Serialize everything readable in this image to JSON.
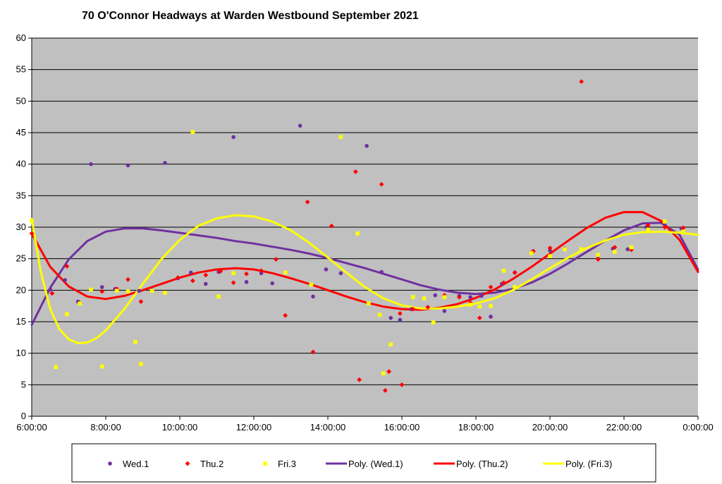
{
  "chart_data": {
    "type": "scatter",
    "title": "70 O'Connor Headways at Warden Westbound September 2021",
    "xlabel": "",
    "ylabel": "",
    "x_unit": "time of day (hours)",
    "xlim": [
      6,
      24
    ],
    "ylim": [
      0,
      60
    ],
    "y_ticks": [
      0,
      5,
      10,
      15,
      20,
      25,
      30,
      35,
      40,
      45,
      50,
      55,
      60
    ],
    "x_ticks": [
      6,
      8,
      10,
      12,
      14,
      16,
      18,
      20,
      22,
      24
    ],
    "x_tick_labels": [
      "6:00:00",
      "8:00:00",
      "10:00:00",
      "12:00:00",
      "14:00:00",
      "16:00:00",
      "18:00:00",
      "20:00:00",
      "22:00:00",
      "0:00:00"
    ],
    "grid": true,
    "plot_background": "#c0c0c0",
    "legend_position": "bottom",
    "series": [
      {
        "name": "Wed.1",
        "kind": "points",
        "marker": "circle",
        "color": "#7030a0",
        "points": [
          [
            6.5,
            20.1
          ],
          [
            6.9,
            21.6
          ],
          [
            7.25,
            18.2
          ],
          [
            7.6,
            40.0
          ],
          [
            7.9,
            20.5
          ],
          [
            8.25,
            20.2
          ],
          [
            8.6,
            39.8
          ],
          [
            8.9,
            19.9
          ],
          [
            9.25,
            20.0
          ],
          [
            9.6,
            40.2
          ],
          [
            9.95,
            21.9
          ],
          [
            10.3,
            22.8
          ],
          [
            10.7,
            21.0
          ],
          [
            11.05,
            22.9
          ],
          [
            11.45,
            44.3
          ],
          [
            11.8,
            21.3
          ],
          [
            12.2,
            22.7
          ],
          [
            12.5,
            21.1
          ],
          [
            13.25,
            46.1
          ],
          [
            13.6,
            19.0
          ],
          [
            13.95,
            23.3
          ],
          [
            14.35,
            22.7
          ],
          [
            15.05,
            42.9
          ],
          [
            15.45,
            22.9
          ],
          [
            15.7,
            15.6
          ],
          [
            15.95,
            15.3
          ],
          [
            16.25,
            17.0
          ],
          [
            16.9,
            19.2
          ],
          [
            17.15,
            16.7
          ],
          [
            17.55,
            19.1
          ],
          [
            17.85,
            18.9
          ],
          [
            18.15,
            19.1
          ],
          [
            18.4,
            15.8
          ],
          [
            18.7,
            21.0
          ],
          [
            19.05,
            22.8
          ],
          [
            19.5,
            26.0
          ],
          [
            20.0,
            26.3
          ],
          [
            20.4,
            26.6
          ],
          [
            21.3,
            25.4
          ],
          [
            21.7,
            26.6
          ],
          [
            22.1,
            26.5
          ],
          [
            22.6,
            30.0
          ],
          [
            23.1,
            30.4
          ],
          [
            23.55,
            29.8
          ]
        ]
      },
      {
        "name": "Thu.2",
        "kind": "points",
        "marker": "diamond",
        "color": "#ff0000",
        "points": [
          [
            6.0,
            29.0
          ],
          [
            6.55,
            19.5
          ],
          [
            6.95,
            23.8
          ],
          [
            7.3,
            18.0
          ],
          [
            7.9,
            19.8
          ],
          [
            8.3,
            20.2
          ],
          [
            8.6,
            21.7
          ],
          [
            8.95,
            18.2
          ],
          [
            9.95,
            22.0
          ],
          [
            10.35,
            21.5
          ],
          [
            10.7,
            22.4
          ],
          [
            11.1,
            23.0
          ],
          [
            11.45,
            21.2
          ],
          [
            11.8,
            22.6
          ],
          [
            12.2,
            23.1
          ],
          [
            12.6,
            24.9
          ],
          [
            12.85,
            16.0
          ],
          [
            13.45,
            34.0
          ],
          [
            13.6,
            10.2
          ],
          [
            14.1,
            30.2
          ],
          [
            14.75,
            38.8
          ],
          [
            14.85,
            5.8
          ],
          [
            15.45,
            36.8
          ],
          [
            15.55,
            4.1
          ],
          [
            15.65,
            7.1
          ],
          [
            15.95,
            16.3
          ],
          [
            16.0,
            5.0
          ],
          [
            16.3,
            17.0
          ],
          [
            16.7,
            17.3
          ],
          [
            17.15,
            19.2
          ],
          [
            17.55,
            18.9
          ],
          [
            17.85,
            18.0
          ],
          [
            18.1,
            15.6
          ],
          [
            18.4,
            20.5
          ],
          [
            18.75,
            21.2
          ],
          [
            19.05,
            22.8
          ],
          [
            19.55,
            26.2
          ],
          [
            20.0,
            26.7
          ],
          [
            20.85,
            53.1
          ],
          [
            21.3,
            24.9
          ],
          [
            21.75,
            26.8
          ],
          [
            22.2,
            26.4
          ],
          [
            22.65,
            30.3
          ],
          [
            23.1,
            30.0
          ],
          [
            23.6,
            29.9
          ]
        ]
      },
      {
        "name": "Fri.3",
        "kind": "points",
        "marker": "square",
        "color": "#ffff00",
        "points": [
          [
            6.0,
            31.0
          ],
          [
            6.65,
            7.8
          ],
          [
            6.95,
            16.2
          ],
          [
            7.3,
            17.9
          ],
          [
            7.6,
            20.1
          ],
          [
            7.9,
            7.9
          ],
          [
            8.3,
            19.9
          ],
          [
            8.6,
            19.8
          ],
          [
            8.8,
            11.8
          ],
          [
            8.95,
            8.3
          ],
          [
            9.25,
            19.9
          ],
          [
            9.6,
            19.6
          ],
          [
            10.35,
            45.1
          ],
          [
            11.05,
            19.0
          ],
          [
            11.45,
            22.7
          ],
          [
            12.85,
            22.8
          ],
          [
            13.55,
            20.9
          ],
          [
            14.35,
            44.3
          ],
          [
            14.8,
            29.0
          ],
          [
            15.1,
            17.9
          ],
          [
            15.4,
            16.1
          ],
          [
            15.5,
            6.8
          ],
          [
            15.7,
            11.4
          ],
          [
            16.3,
            18.9
          ],
          [
            16.6,
            18.7
          ],
          [
            16.85,
            14.9
          ],
          [
            17.15,
            18.9
          ],
          [
            17.85,
            17.7
          ],
          [
            18.1,
            17.4
          ],
          [
            18.4,
            17.5
          ],
          [
            18.75,
            23.1
          ],
          [
            19.05,
            20.5
          ],
          [
            19.5,
            25.9
          ],
          [
            20.0,
            25.4
          ],
          [
            20.4,
            26.5
          ],
          [
            20.85,
            26.5
          ],
          [
            21.3,
            25.6
          ],
          [
            21.75,
            26.1
          ],
          [
            22.2,
            26.8
          ],
          [
            22.65,
            29.6
          ],
          [
            23.1,
            30.9
          ],
          [
            23.6,
            29.3
          ]
        ]
      },
      {
        "name": "Poly. (Wed.1)",
        "kind": "line",
        "color": "#7030a0",
        "points": [
          [
            6.0,
            14.5
          ],
          [
            6.5,
            20.4
          ],
          [
            7.0,
            24.9
          ],
          [
            7.5,
            27.8
          ],
          [
            8.0,
            29.3
          ],
          [
            8.5,
            29.8
          ],
          [
            9.0,
            29.8
          ],
          [
            9.5,
            29.5
          ],
          [
            10.0,
            29.1
          ],
          [
            10.5,
            28.7
          ],
          [
            11.0,
            28.3
          ],
          [
            11.5,
            27.8
          ],
          [
            12.0,
            27.4
          ],
          [
            12.5,
            26.9
          ],
          [
            13.0,
            26.4
          ],
          [
            13.5,
            25.8
          ],
          [
            14.0,
            25.1
          ],
          [
            14.5,
            24.3
          ],
          [
            15.0,
            23.5
          ],
          [
            15.5,
            22.6
          ],
          [
            16.0,
            21.7
          ],
          [
            16.5,
            20.8
          ],
          [
            17.0,
            20.1
          ],
          [
            17.5,
            19.6
          ],
          [
            18.0,
            19.4
          ],
          [
            18.5,
            19.6
          ],
          [
            19.0,
            20.2
          ],
          [
            19.5,
            21.2
          ],
          [
            20.0,
            22.6
          ],
          [
            20.5,
            24.3
          ],
          [
            21.0,
            26.1
          ],
          [
            21.5,
            27.9
          ],
          [
            22.0,
            29.5
          ],
          [
            22.5,
            30.6
          ],
          [
            23.0,
            30.7
          ],
          [
            23.5,
            28.8
          ],
          [
            24.0,
            23.3
          ]
        ]
      },
      {
        "name": "Poly. (Thu.2)",
        "kind": "line",
        "color": "#ff0000",
        "points": [
          [
            6.0,
            29.0
          ],
          [
            6.5,
            23.7
          ],
          [
            7.0,
            20.6
          ],
          [
            7.5,
            19.0
          ],
          [
            8.0,
            18.6
          ],
          [
            8.5,
            19.1
          ],
          [
            9.0,
            20.0
          ],
          [
            9.5,
            21.0
          ],
          [
            10.0,
            22.0
          ],
          [
            10.5,
            22.8
          ],
          [
            11.0,
            23.3
          ],
          [
            11.5,
            23.5
          ],
          [
            12.0,
            23.3
          ],
          [
            12.5,
            22.7
          ],
          [
            13.0,
            21.9
          ],
          [
            13.5,
            21.0
          ],
          [
            14.0,
            20.0
          ],
          [
            14.5,
            19.0
          ],
          [
            15.0,
            18.1
          ],
          [
            15.5,
            17.4
          ],
          [
            16.0,
            17.0
          ],
          [
            16.5,
            16.9
          ],
          [
            17.0,
            17.2
          ],
          [
            17.5,
            17.8
          ],
          [
            18.0,
            18.8
          ],
          [
            18.5,
            20.1
          ],
          [
            19.0,
            21.8
          ],
          [
            19.5,
            23.7
          ],
          [
            20.0,
            25.8
          ],
          [
            20.5,
            27.9
          ],
          [
            21.0,
            29.9
          ],
          [
            21.5,
            31.5
          ],
          [
            22.0,
            32.4
          ],
          [
            22.5,
            32.4
          ],
          [
            23.0,
            31.0
          ],
          [
            23.5,
            28.0
          ],
          [
            24.0,
            22.9
          ]
        ]
      },
      {
        "name": "Poly. (Fri.3)",
        "kind": "line",
        "color": "#ffff00",
        "points": [
          [
            6.0,
            31.3
          ],
          [
            6.25,
            22.8
          ],
          [
            6.5,
            17.0
          ],
          [
            6.75,
            13.8
          ],
          [
            7.0,
            12.2
          ],
          [
            7.25,
            11.6
          ],
          [
            7.5,
            11.7
          ],
          [
            7.75,
            12.4
          ],
          [
            8.0,
            13.6
          ],
          [
            8.5,
            17.0
          ],
          [
            9.0,
            21.0
          ],
          [
            9.5,
            24.9
          ],
          [
            10.0,
            28.0
          ],
          [
            10.5,
            30.2
          ],
          [
            11.0,
            31.4
          ],
          [
            11.5,
            31.9
          ],
          [
            12.0,
            31.7
          ],
          [
            12.5,
            30.9
          ],
          [
            13.0,
            29.5
          ],
          [
            13.5,
            27.5
          ],
          [
            14.0,
            25.2
          ],
          [
            14.5,
            22.8
          ],
          [
            15.0,
            20.5
          ],
          [
            15.5,
            18.7
          ],
          [
            16.0,
            17.6
          ],
          [
            16.5,
            17.1
          ],
          [
            17.0,
            17.1
          ],
          [
            17.5,
            17.4
          ],
          [
            18.0,
            17.9
          ],
          [
            18.5,
            18.7
          ],
          [
            19.0,
            20.0
          ],
          [
            19.5,
            21.7
          ],
          [
            20.0,
            23.5
          ],
          [
            20.5,
            25.2
          ],
          [
            21.0,
            26.7
          ],
          [
            21.5,
            27.9
          ],
          [
            22.0,
            28.8
          ],
          [
            22.5,
            29.2
          ],
          [
            23.0,
            29.3
          ],
          [
            23.5,
            29.1
          ],
          [
            24.0,
            28.8
          ]
        ]
      }
    ]
  }
}
